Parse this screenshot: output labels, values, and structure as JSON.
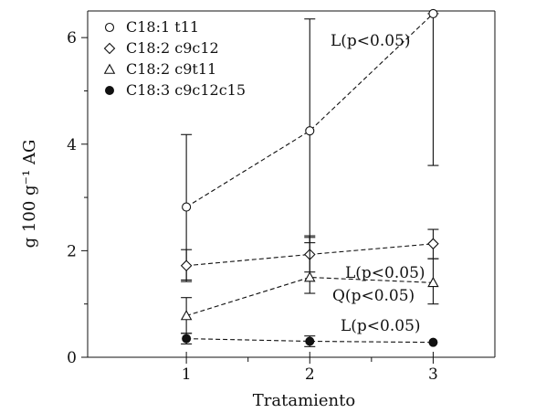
{
  "chart_data": {
    "type": "line",
    "title": "",
    "xlabel": "Tratamiento",
    "ylabel": "g 100 g⁻¹ AG",
    "x": [
      1,
      2,
      3
    ],
    "xticks": [
      "1",
      "2",
      "3"
    ],
    "xlim": [
      0.2,
      3.5
    ],
    "ylim": [
      0,
      6.5
    ],
    "yticks": [
      "0",
      "2",
      "4",
      "6"
    ],
    "grid": false,
    "legend_position": "top-left",
    "line_style": "dashed",
    "series": [
      {
        "name": "C18:1 t11",
        "marker": "circle-open",
        "values": [
          2.82,
          4.25,
          6.45
        ],
        "err_low": [
          1.42,
          2.15,
          3.6
        ],
        "err_high": [
          4.18,
          6.35,
          6.45
        ],
        "color": "#111111"
      },
      {
        "name": "C18:2 c9c12",
        "marker": "diamond-open",
        "values": [
          1.72,
          1.93,
          2.13
        ],
        "err_low": [
          1.45,
          1.6,
          1.85
        ],
        "err_high": [
          2.02,
          2.28,
          2.4
        ],
        "color": "#111111"
      },
      {
        "name": "C18:2 c9t11",
        "marker": "triangle-open",
        "values": [
          0.78,
          1.5,
          1.4
        ],
        "err_low": [
          0.45,
          1.2,
          1.0
        ],
        "err_high": [
          1.12,
          2.25,
          1.85
        ],
        "color": "#111111"
      },
      {
        "name": "C18:3 c9c12c15",
        "marker": "circle-filled",
        "values": [
          0.35,
          0.3,
          0.28
        ],
        "err_low": [
          0.25,
          0.2,
          0.28
        ],
        "err_high": [
          0.45,
          0.4,
          0.28
        ],
        "color": "#111111"
      }
    ],
    "annotations": [
      {
        "text": "L(p<0.05)",
        "series": "C18:1 t11"
      },
      {
        "text": "L(p<0.05)",
        "series": "C18:2 c9c12"
      },
      {
        "text": "Q(p<0.05)",
        "series": "C18:2 c9t11"
      },
      {
        "text": "L(p<0.05)",
        "series": "C18:3 c9c12c15"
      }
    ]
  }
}
